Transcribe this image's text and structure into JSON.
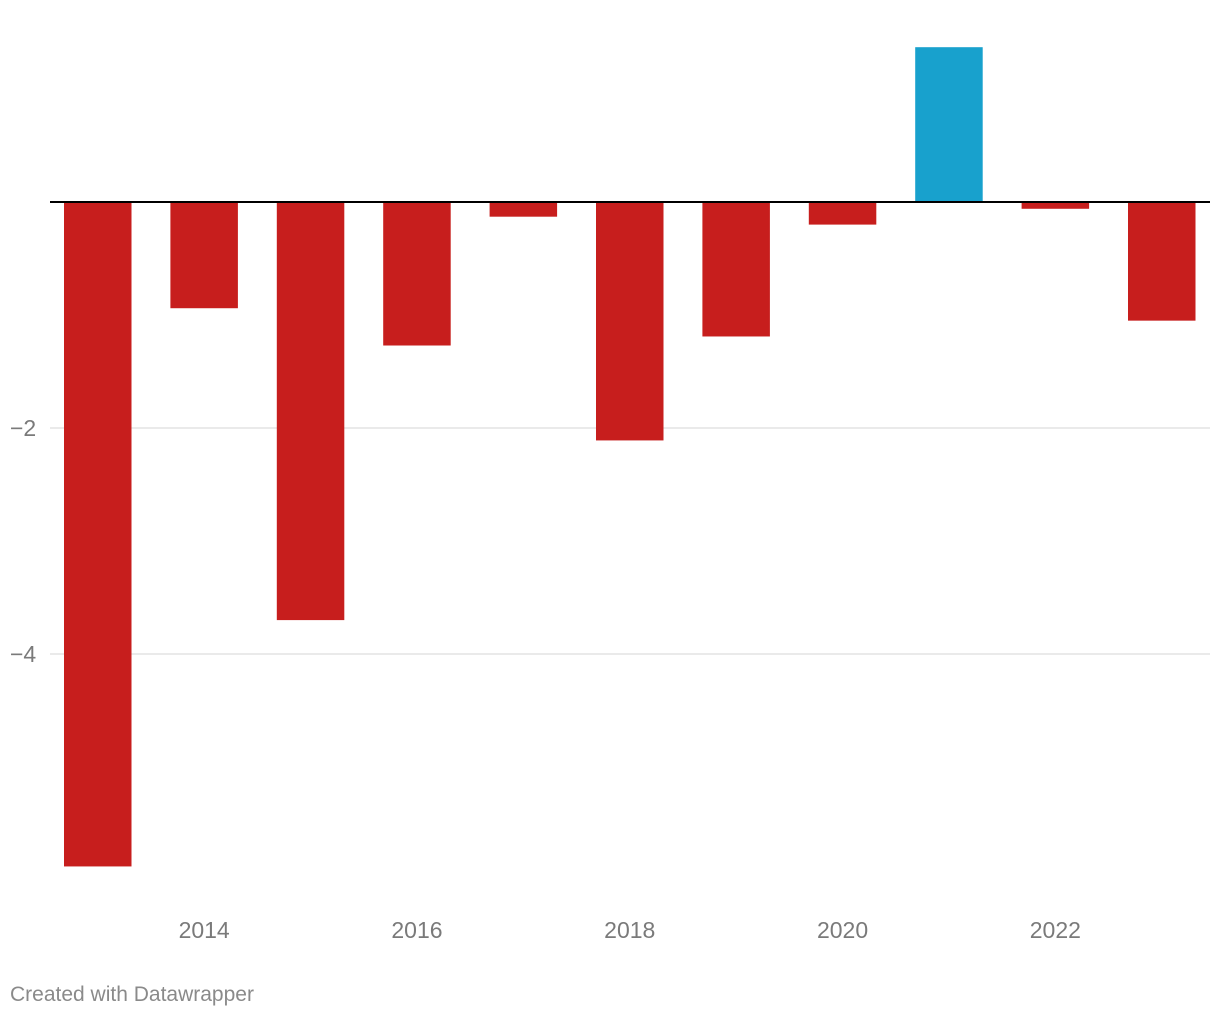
{
  "chart_data": {
    "type": "bar",
    "categories": [
      "2013",
      "2014",
      "2015",
      "2016",
      "2017",
      "2018",
      "2019",
      "2020",
      "2021",
      "2022",
      "2023"
    ],
    "values": [
      -5.88,
      -0.94,
      -3.7,
      -1.27,
      -0.13,
      -2.11,
      -1.19,
      -0.2,
      1.37,
      -0.06,
      -1.05
    ],
    "x_tick_labels": [
      "2014",
      "2016",
      "2018",
      "2020",
      "2022"
    ],
    "y_ticks": [
      -2,
      -4
    ],
    "y_tick_labels": [
      "−2",
      "−4"
    ],
    "ylim": [
      -6.2,
      1.8
    ],
    "grid": true,
    "colors": {
      "positive": "#18a1cd",
      "negative": "#c71e1d",
      "gridline": "#e3e3e3",
      "baseline": "#000000",
      "tick_text": "#7a7a7a"
    },
    "title": "",
    "xlabel": "",
    "ylabel": ""
  },
  "footer": {
    "credit": "Created with Datawrapper"
  }
}
